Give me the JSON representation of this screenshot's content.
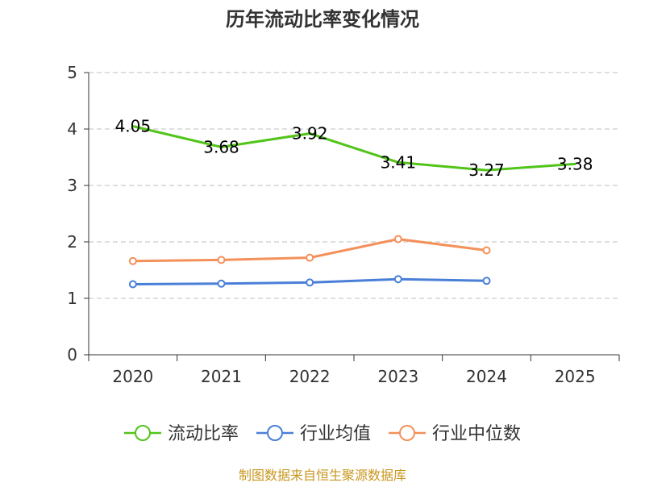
{
  "chart_data": {
    "type": "line",
    "title": "历年流动比率变化情况",
    "categories": [
      "2020",
      "2021",
      "2022",
      "2023",
      "2024",
      "2025"
    ],
    "y_ticks": [
      "0",
      "1",
      "2",
      "3",
      "4",
      "5"
    ],
    "ylim": [
      0,
      5
    ],
    "grid": true,
    "legend_position": "bottom",
    "series": [
      {
        "name": "流动比率",
        "color": "#52c41a",
        "values": [
          4.05,
          3.68,
          3.92,
          3.41,
          3.27,
          3.38
        ],
        "labels": [
          "4.05",
          "3.68",
          "3.92",
          "3.41",
          "3.27",
          "3.38"
        ],
        "show_markers": false,
        "show_labels": true
      },
      {
        "name": "行业均值",
        "color": "#4a7fd8",
        "values": [
          1.25,
          1.26,
          1.28,
          1.34,
          1.31,
          null
        ],
        "show_markers": true,
        "show_labels": false
      },
      {
        "name": "行业中位数",
        "color": "#f4905a",
        "values": [
          1.66,
          1.68,
          1.72,
          2.05,
          1.85,
          null
        ],
        "show_markers": true,
        "show_labels": false
      }
    ],
    "source_note": "制图数据来自恒生聚源数据库",
    "source_color": "#c8961e"
  }
}
